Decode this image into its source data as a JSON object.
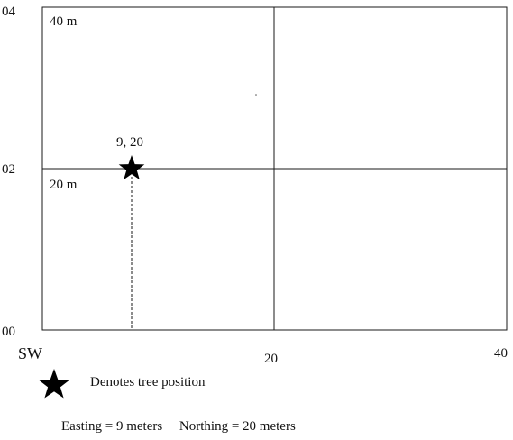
{
  "plot_labels": {
    "y_top": "04",
    "y_mid": "02",
    "y_bottom": "00",
    "x_mid": "20",
    "x_right": "40",
    "corner": "SW",
    "label_40m": "40 m",
    "label_20m": "20 m"
  },
  "tree": {
    "coord_label": "9, 20",
    "easting": 9,
    "northing": 20,
    "icon": "star-icon"
  },
  "legend": {
    "icon": "star-icon",
    "text": "Denotes tree position"
  },
  "caption": "Easting = 9 meters     Northing = 20 meters",
  "colors": {
    "line": "#1a1a1a",
    "star": "#000000"
  }
}
